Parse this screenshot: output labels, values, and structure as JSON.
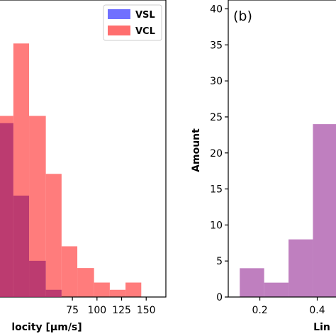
{
  "chart_data": [
    {
      "type": "bar",
      "xlabel": "locity [μm/s]",
      "ylabel": "",
      "xlim": [
        0,
        170
      ],
      "ylim": [
        0,
        41
      ],
      "xticks": [
        75,
        100,
        125,
        150
      ],
      "legend": {
        "placement": "top-right"
      },
      "series": [
        {
          "name": "VSL",
          "color": "#7070ff",
          "bins": [
            {
              "x0": 0,
              "x1": 15,
              "value": 24
            },
            {
              "x0": 15,
              "x1": 31,
              "value": 14
            },
            {
              "x0": 31,
              "x1": 48,
              "value": 5
            },
            {
              "x0": 48,
              "x1": 64,
              "value": 1
            }
          ]
        },
        {
          "name": "VCL",
          "color": "#ff6e6e",
          "bins": [
            {
              "x0": 0,
              "x1": 15,
              "value": 25
            },
            {
              "x0": 15,
              "x1": 31,
              "value": 35
            },
            {
              "x0": 31,
              "x1": 48,
              "value": 25
            },
            {
              "x0": 48,
              "x1": 64,
              "value": 17
            },
            {
              "x0": 64,
              "x1": 80,
              "value": 7
            },
            {
              "x0": 80,
              "x1": 97,
              "value": 4
            },
            {
              "x0": 97,
              "x1": 113,
              "value": 2
            },
            {
              "x0": 113,
              "x1": 129,
              "value": 1
            },
            {
              "x0": 129,
              "x1": 145,
              "value": 2
            }
          ]
        }
      ]
    },
    {
      "type": "bar",
      "panel_label": "(b)",
      "xlabel": "Lin",
      "ylabel": "Amount",
      "xlim": [
        0.08,
        0.5
      ],
      "ylim": [
        0,
        41
      ],
      "xticks": [
        0.2,
        0.4
      ],
      "yticks": [
        0,
        5,
        10,
        15,
        20,
        25,
        30,
        35,
        40
      ],
      "series": [
        {
          "color": "#bf7fbf",
          "bins": [
            {
              "x0": 0.13,
              "x1": 0.215,
              "value": 4
            },
            {
              "x0": 0.215,
              "x1": 0.3,
              "value": 2
            },
            {
              "x0": 0.3,
              "x1": 0.385,
              "value": 8
            },
            {
              "x0": 0.385,
              "x1": 0.47,
              "value": 24
            }
          ]
        }
      ]
    }
  ]
}
